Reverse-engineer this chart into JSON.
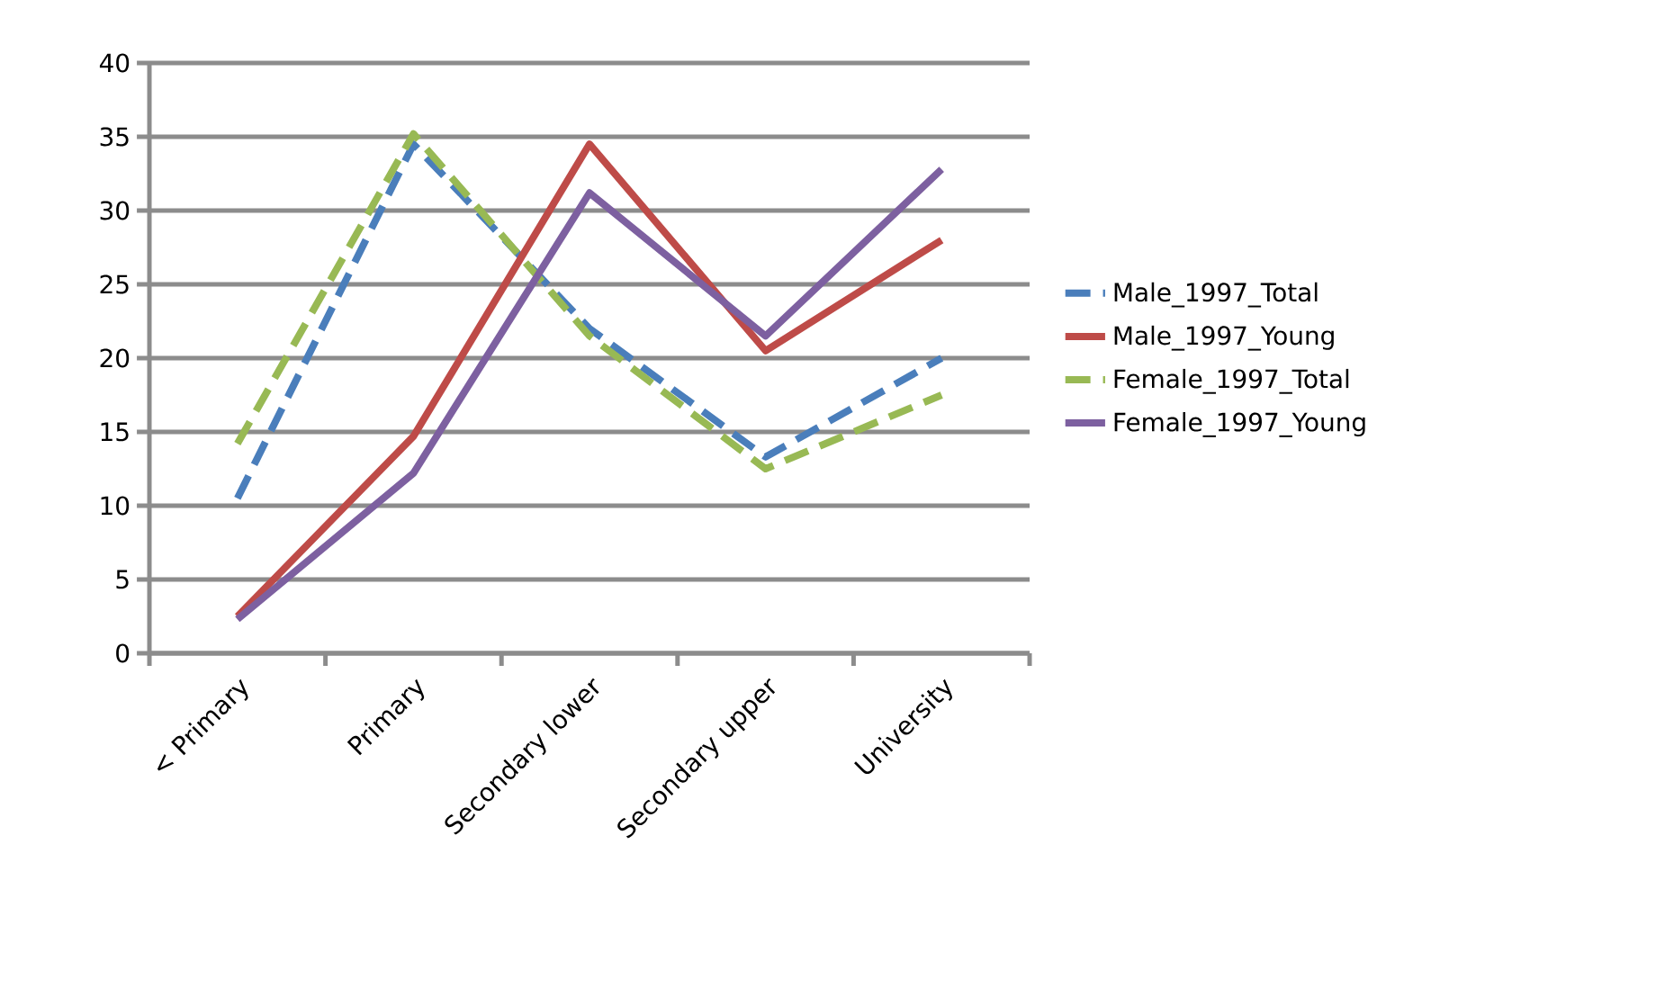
{
  "chart_data": {
    "type": "line",
    "categories": [
      "< Primary",
      "Primary",
      "Secondary lower",
      "Secondary upper",
      "University"
    ],
    "series": [
      {
        "name": "Male_1997_Total",
        "color": "#4a7ebb",
        "line_style": "dashed",
        "values": [
          10.5,
          34.5,
          22,
          13.3,
          20
        ]
      },
      {
        "name": "Male_1997_Young",
        "color": "#be4b48",
        "line_style": "solid",
        "values": [
          2.5,
          14.7,
          34.5,
          20.5,
          28
        ]
      },
      {
        "name": "Female_1997_Total",
        "color": "#98b954",
        "line_style": "dashed",
        "values": [
          14.2,
          35.2,
          21.5,
          12.5,
          17.5
        ]
      },
      {
        "name": "Female_1997_Young",
        "color": "#7d60a0",
        "line_style": "solid",
        "values": [
          2.3,
          12.2,
          31.2,
          21.5,
          32.8
        ]
      }
    ],
    "ylim": [
      0,
      40
    ],
    "yticks": [
      0,
      5,
      10,
      15,
      20,
      25,
      30,
      35,
      40
    ],
    "grid": "y",
    "legend": "right",
    "marker": "none"
  }
}
